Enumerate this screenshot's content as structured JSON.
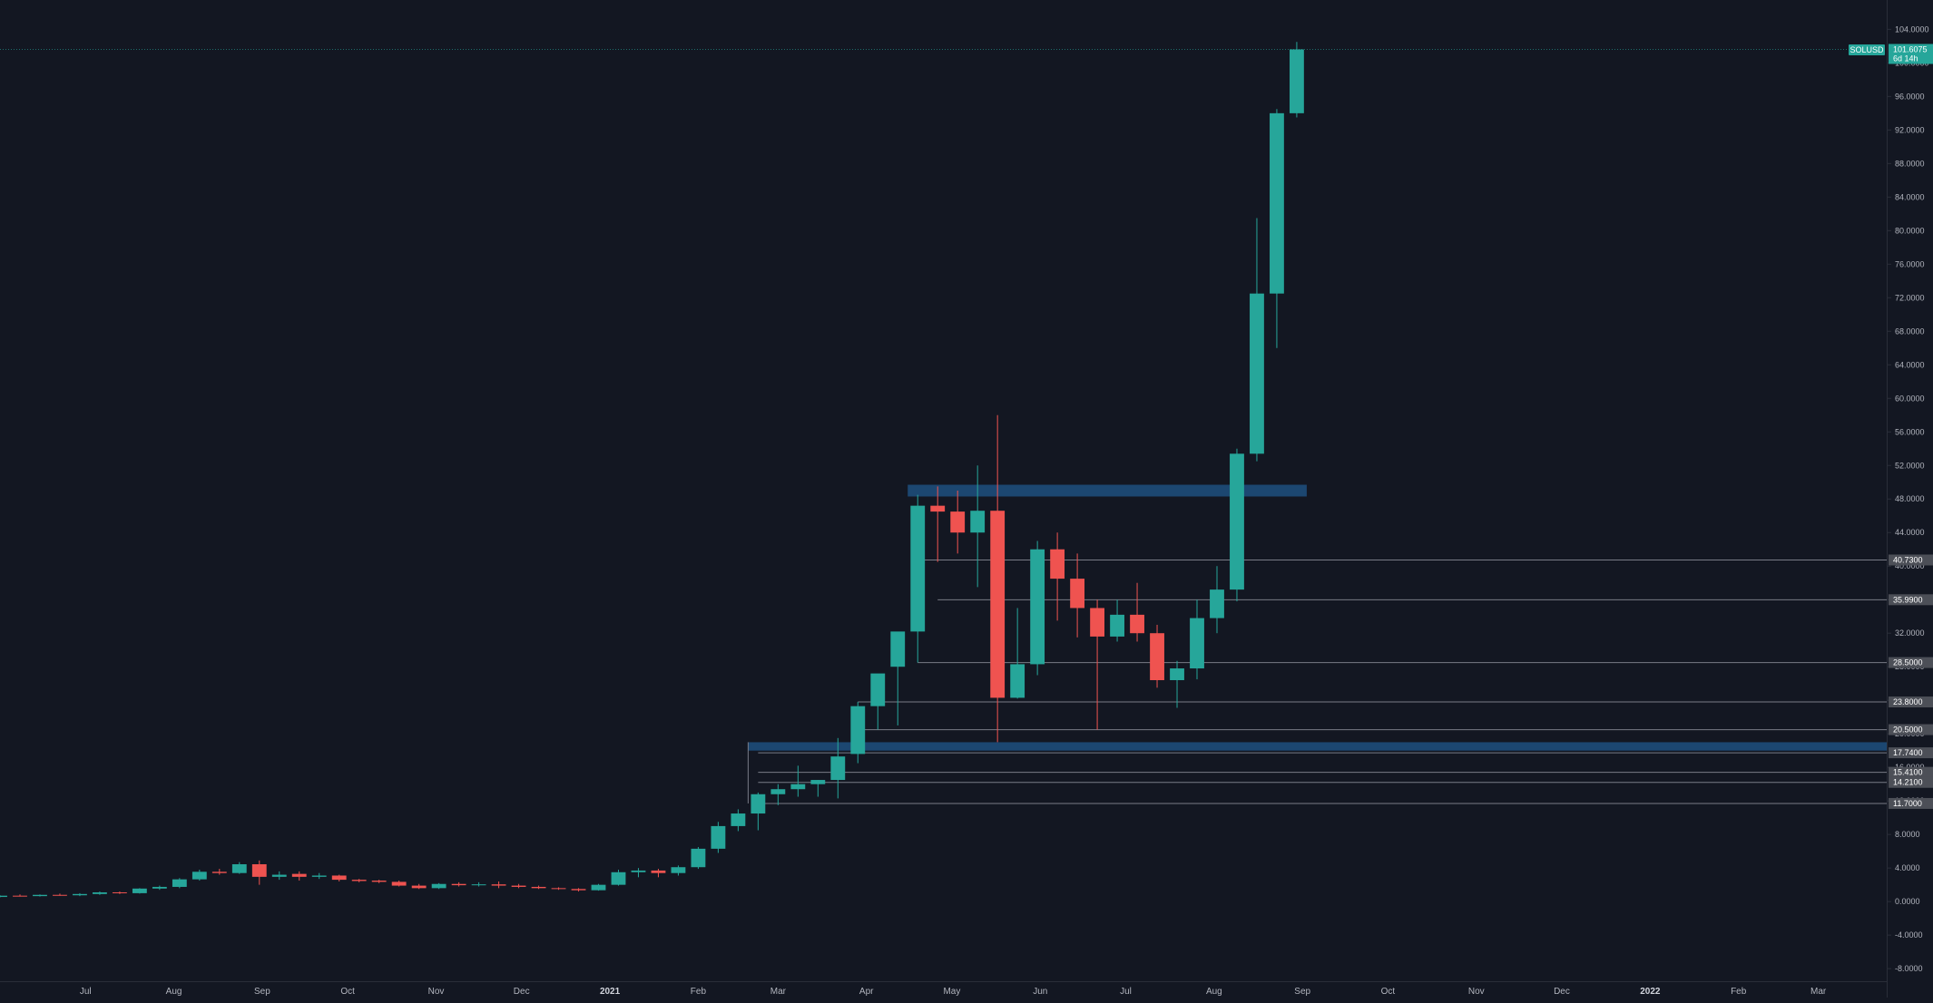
{
  "symbol": "SOLUSD",
  "countdown": "6d 14h",
  "colors": {
    "background": "#131722",
    "up": "#26a69a",
    "down": "#ef5350",
    "level_line": "#787b86",
    "zone": "#1e4c7a",
    "axis_text": "#b2b5be",
    "tag_bg": "#4c4f57"
  },
  "price_axis_ticks": [
    "104.0000",
    "100.0000",
    "96.0000",
    "92.0000",
    "88.0000",
    "84.0000",
    "80.0000",
    "76.0000",
    "72.0000",
    "68.0000",
    "64.0000",
    "60.0000",
    "56.0000",
    "52.0000",
    "48.0000",
    "44.0000",
    "40.0000",
    "36.0000",
    "32.0000",
    "28.0000",
    "24.0000",
    "20.0000",
    "16.0000",
    "12.0000",
    "8.0000",
    "4.0000",
    "0.0000",
    "-4.0000",
    "-8.0000"
  ],
  "time_axis_labels": [
    {
      "label": "Jul",
      "date": "2020-07-01",
      "major": false
    },
    {
      "label": "Aug",
      "date": "2020-08-01",
      "major": false
    },
    {
      "label": "Sep",
      "date": "2020-09-01",
      "major": false
    },
    {
      "label": "Oct",
      "date": "2020-10-01",
      "major": false
    },
    {
      "label": "Nov",
      "date": "2020-11-01",
      "major": false
    },
    {
      "label": "Dec",
      "date": "2020-12-01",
      "major": false
    },
    {
      "label": "2021",
      "date": "2021-01-01",
      "major": true
    },
    {
      "label": "Feb",
      "date": "2021-02-01",
      "major": false
    },
    {
      "label": "Mar",
      "date": "2021-03-01",
      "major": false
    },
    {
      "label": "Apr",
      "date": "2021-04-01",
      "major": false
    },
    {
      "label": "May",
      "date": "2021-05-01",
      "major": false
    },
    {
      "label": "Jun",
      "date": "2021-06-01",
      "major": false
    },
    {
      "label": "Jul",
      "date": "2021-07-01",
      "major": false
    },
    {
      "label": "Aug",
      "date": "2021-08-01",
      "major": false
    },
    {
      "label": "Sep",
      "date": "2021-09-01",
      "major": false
    },
    {
      "label": "Oct",
      "date": "2021-10-01",
      "major": false
    },
    {
      "label": "Nov",
      "date": "2021-11-01",
      "major": false
    },
    {
      "label": "Dec",
      "date": "2021-12-01",
      "major": false
    },
    {
      "label": "2022",
      "date": "2022-01-01",
      "major": true
    },
    {
      "label": "Feb",
      "date": "2022-02-01",
      "major": false
    },
    {
      "label": "Mar",
      "date": "2022-03-01",
      "major": false
    }
  ],
  "chart_data": {
    "type": "candlestick",
    "symbol": "SOLUSD",
    "interval": "weekly",
    "last_price": 101.6075,
    "ylim": [
      -9.5,
      107.5
    ],
    "xlim": [
      "2020-06-01",
      "2022-03-25"
    ],
    "grid": false,
    "candles": [
      {
        "date": "2020-06-01",
        "open": 0.55,
        "high": 0.75,
        "low": 0.5,
        "close": 0.7
      },
      {
        "date": "2020-06-08",
        "open": 0.7,
        "high": 0.85,
        "low": 0.6,
        "close": 0.65
      },
      {
        "date": "2020-06-15",
        "open": 0.65,
        "high": 0.85,
        "low": 0.6,
        "close": 0.8
      },
      {
        "date": "2020-06-22",
        "open": 0.8,
        "high": 0.95,
        "low": 0.7,
        "close": 0.75
      },
      {
        "date": "2020-06-29",
        "open": 0.75,
        "high": 1.0,
        "low": 0.65,
        "close": 0.9
      },
      {
        "date": "2020-07-06",
        "open": 0.9,
        "high": 1.2,
        "low": 0.8,
        "close": 1.1
      },
      {
        "date": "2020-07-13",
        "open": 1.1,
        "high": 1.2,
        "low": 0.9,
        "close": 1.0
      },
      {
        "date": "2020-07-20",
        "open": 1.0,
        "high": 1.6,
        "low": 0.95,
        "close": 1.55
      },
      {
        "date": "2020-07-27",
        "open": 1.55,
        "high": 1.9,
        "low": 1.4,
        "close": 1.75
      },
      {
        "date": "2020-08-03",
        "open": 1.75,
        "high": 2.8,
        "low": 1.6,
        "close": 2.65
      },
      {
        "date": "2020-08-10",
        "open": 2.65,
        "high": 3.8,
        "low": 2.5,
        "close": 3.55
      },
      {
        "date": "2020-08-17",
        "open": 3.55,
        "high": 3.9,
        "low": 3.2,
        "close": 3.4
      },
      {
        "date": "2020-08-24",
        "open": 3.4,
        "high": 4.7,
        "low": 3.3,
        "close": 4.45
      },
      {
        "date": "2020-08-31",
        "open": 4.45,
        "high": 4.9,
        "low": 2.0,
        "close": 2.95
      },
      {
        "date": "2020-09-07",
        "open": 2.95,
        "high": 3.6,
        "low": 2.6,
        "close": 3.2
      },
      {
        "date": "2020-09-14",
        "open": 3.3,
        "high": 3.6,
        "low": 2.5,
        "close": 2.95
      },
      {
        "date": "2020-09-21",
        "open": 2.95,
        "high": 3.4,
        "low": 2.7,
        "close": 3.1
      },
      {
        "date": "2020-09-28",
        "open": 3.1,
        "high": 3.2,
        "low": 2.4,
        "close": 2.6
      },
      {
        "date": "2020-10-05",
        "open": 2.6,
        "high": 2.7,
        "low": 2.3,
        "close": 2.45
      },
      {
        "date": "2020-10-12",
        "open": 2.5,
        "high": 2.6,
        "low": 2.2,
        "close": 2.35
      },
      {
        "date": "2020-10-19",
        "open": 2.35,
        "high": 2.5,
        "low": 1.8,
        "close": 1.9
      },
      {
        "date": "2020-10-26",
        "open": 1.9,
        "high": 2.1,
        "low": 1.5,
        "close": 1.6
      },
      {
        "date": "2020-11-02",
        "open": 1.6,
        "high": 2.2,
        "low": 1.5,
        "close": 2.1
      },
      {
        "date": "2020-11-09",
        "open": 2.1,
        "high": 2.3,
        "low": 1.8,
        "close": 1.95
      },
      {
        "date": "2020-11-16",
        "open": 1.95,
        "high": 2.3,
        "low": 1.8,
        "close": 2.05
      },
      {
        "date": "2020-11-23",
        "open": 2.05,
        "high": 2.4,
        "low": 1.6,
        "close": 1.9
      },
      {
        "date": "2020-11-30",
        "open": 1.9,
        "high": 2.1,
        "low": 1.6,
        "close": 1.75
      },
      {
        "date": "2020-12-07",
        "open": 1.75,
        "high": 1.9,
        "low": 1.5,
        "close": 1.6
      },
      {
        "date": "2020-12-14",
        "open": 1.6,
        "high": 1.7,
        "low": 1.4,
        "close": 1.5
      },
      {
        "date": "2020-12-21",
        "open": 1.5,
        "high": 1.6,
        "low": 1.2,
        "close": 1.35
      },
      {
        "date": "2020-12-28",
        "open": 1.35,
        "high": 2.1,
        "low": 1.3,
        "close": 2.0
      },
      {
        "date": "2021-01-04",
        "open": 2.0,
        "high": 3.8,
        "low": 1.9,
        "close": 3.5
      },
      {
        "date": "2021-01-11",
        "open": 3.5,
        "high": 4.0,
        "low": 2.9,
        "close": 3.7
      },
      {
        "date": "2021-01-18",
        "open": 3.7,
        "high": 3.9,
        "low": 2.9,
        "close": 3.4
      },
      {
        "date": "2021-01-25",
        "open": 3.4,
        "high": 4.3,
        "low": 3.1,
        "close": 4.1
      },
      {
        "date": "2021-02-01",
        "open": 4.1,
        "high": 6.5,
        "low": 3.9,
        "close": 6.3
      },
      {
        "date": "2021-02-08",
        "open": 6.3,
        "high": 9.5,
        "low": 5.8,
        "close": 9.0
      },
      {
        "date": "2021-02-15",
        "open": 9.0,
        "high": 11.0,
        "low": 8.4,
        "close": 10.5
      },
      {
        "date": "2021-02-22",
        "open": 10.5,
        "high": 13.0,
        "low": 8.5,
        "close": 12.8
      },
      {
        "date": "2021-03-01",
        "open": 12.8,
        "high": 14.0,
        "low": 11.5,
        "close": 13.4
      },
      {
        "date": "2021-03-08",
        "open": 13.4,
        "high": 16.2,
        "low": 12.5,
        "close": 14.0
      },
      {
        "date": "2021-03-15",
        "open": 14.0,
        "high": 14.5,
        "low": 12.5,
        "close": 14.5
      },
      {
        "date": "2021-03-22",
        "open": 14.5,
        "high": 19.5,
        "low": 12.3,
        "close": 17.3
      },
      {
        "date": "2021-03-29",
        "open": 17.6,
        "high": 23.8,
        "low": 16.5,
        "close": 23.3
      },
      {
        "date": "2021-04-05",
        "open": 23.3,
        "high": 27.0,
        "low": 20.5,
        "close": 27.2
      },
      {
        "date": "2021-04-12",
        "open": 28.0,
        "high": 32.0,
        "low": 21.0,
        "close": 32.2
      },
      {
        "date": "2021-04-19",
        "open": 32.2,
        "high": 48.5,
        "low": 28.5,
        "close": 47.2
      },
      {
        "date": "2021-04-26",
        "open": 47.2,
        "high": 49.5,
        "low": 40.5,
        "close": 46.5
      },
      {
        "date": "2021-05-03",
        "open": 46.5,
        "high": 49.0,
        "low": 41.5,
        "close": 44.0
      },
      {
        "date": "2021-05-10",
        "open": 44.0,
        "high": 52.0,
        "low": 37.5,
        "close": 46.6
      },
      {
        "date": "2021-05-17",
        "open": 46.6,
        "high": 58.0,
        "low": 19.0,
        "close": 24.3
      },
      {
        "date": "2021-05-24",
        "open": 24.3,
        "high": 35.0,
        "low": 24.2,
        "close": 28.3
      },
      {
        "date": "2021-05-31",
        "open": 28.3,
        "high": 43.0,
        "low": 27.0,
        "close": 42.0
      },
      {
        "date": "2021-06-07",
        "open": 42.0,
        "high": 44.0,
        "low": 33.5,
        "close": 38.5
      },
      {
        "date": "2021-06-14",
        "open": 38.5,
        "high": 41.5,
        "low": 31.5,
        "close": 35.0
      },
      {
        "date": "2021-06-21",
        "open": 35.0,
        "high": 36.0,
        "low": 20.5,
        "close": 31.6
      },
      {
        "date": "2021-06-28",
        "open": 31.6,
        "high": 36.0,
        "low": 31.0,
        "close": 34.2
      },
      {
        "date": "2021-07-05",
        "open": 34.2,
        "high": 38.0,
        "low": 31.0,
        "close": 32.0
      },
      {
        "date": "2021-07-12",
        "open": 32.0,
        "high": 33.0,
        "low": 25.5,
        "close": 26.4
      },
      {
        "date": "2021-07-19",
        "open": 26.4,
        "high": 28.7,
        "low": 23.1,
        "close": 27.8
      },
      {
        "date": "2021-07-26",
        "open": 27.8,
        "high": 36.0,
        "low": 26.5,
        "close": 33.8
      },
      {
        "date": "2021-08-02",
        "open": 33.8,
        "high": 40.0,
        "low": 32.0,
        "close": 37.2
      },
      {
        "date": "2021-08-09",
        "open": 37.2,
        "high": 54.0,
        "low": 35.8,
        "close": 53.4
      },
      {
        "date": "2021-08-16",
        "open": 53.4,
        "high": 81.5,
        "low": 52.5,
        "close": 72.5
      },
      {
        "date": "2021-08-23",
        "open": 72.5,
        "high": 94.5,
        "low": 66.0,
        "close": 94.0
      },
      {
        "date": "2021-08-30",
        "open": 94.0,
        "high": 102.5,
        "low": 93.5,
        "close": 101.6075
      }
    ],
    "horizontal_levels": [
      "40.7300",
      "35.9900",
      "28.5000",
      "23.8000",
      "20.5000",
      "17.7400",
      "15.4100",
      "14.2100",
      "11.7000"
    ],
    "zones": [
      {
        "from_date": "2021-04-19",
        "to_date": "2021-08-30",
        "low": 48.3,
        "high": 49.7
      },
      {
        "from_date": "2021-02-22",
        "to_date": "2022-03-25",
        "low": 18.0,
        "high": 19.0
      }
    ]
  }
}
